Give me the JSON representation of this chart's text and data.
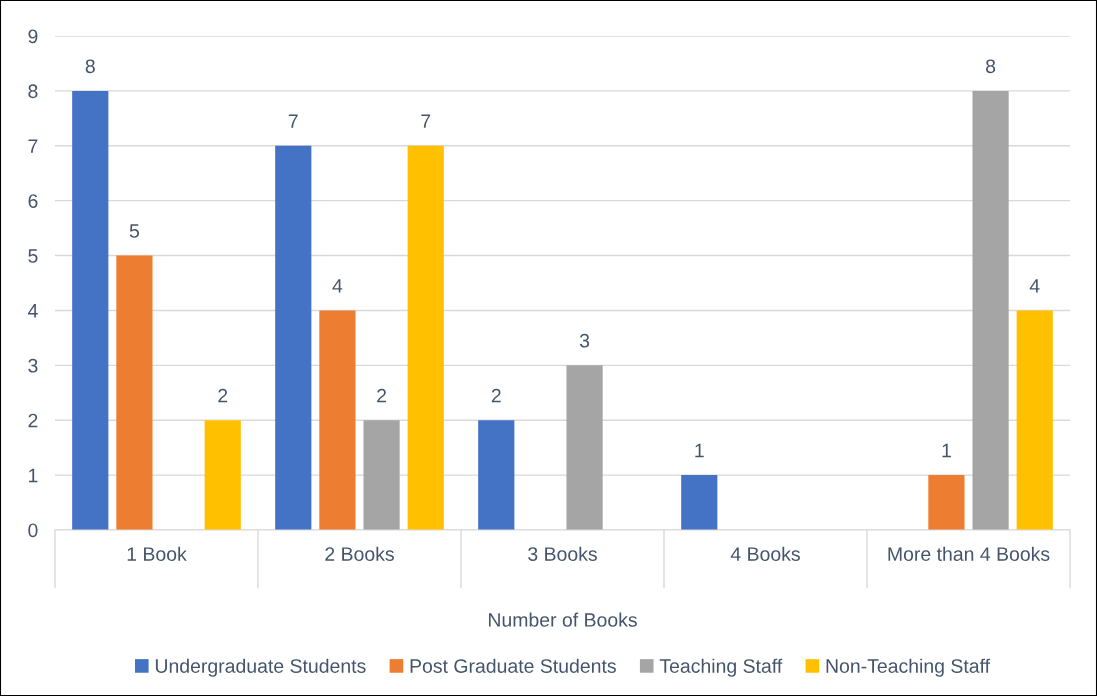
{
  "chart_data": {
    "type": "bar",
    "xlabel": "Number of Books",
    "categories": [
      "1 Book",
      "2 Books",
      "3 Books",
      "4 Books",
      "More than 4 Books"
    ],
    "series": [
      {
        "name": "Undergraduate Students",
        "color": "#4472c4",
        "values": [
          8,
          7,
          2,
          1,
          null
        ]
      },
      {
        "name": "Post Graduate Students",
        "color": "#ed7d31",
        "values": [
          5,
          4,
          null,
          null,
          1
        ]
      },
      {
        "name": "Teaching Staff",
        "color": "#a5a5a5",
        "values": [
          null,
          2,
          3,
          null,
          8
        ]
      },
      {
        "name": "Non-Teaching Staff",
        "color": "#ffc000",
        "values": [
          2,
          7,
          null,
          null,
          4
        ]
      }
    ],
    "ylim": [
      0,
      9
    ],
    "yticks": [
      0,
      1,
      2,
      3,
      4,
      5,
      6,
      7,
      8,
      9
    ],
    "grid": "y",
    "legend": "bottom",
    "data_labels": true
  }
}
